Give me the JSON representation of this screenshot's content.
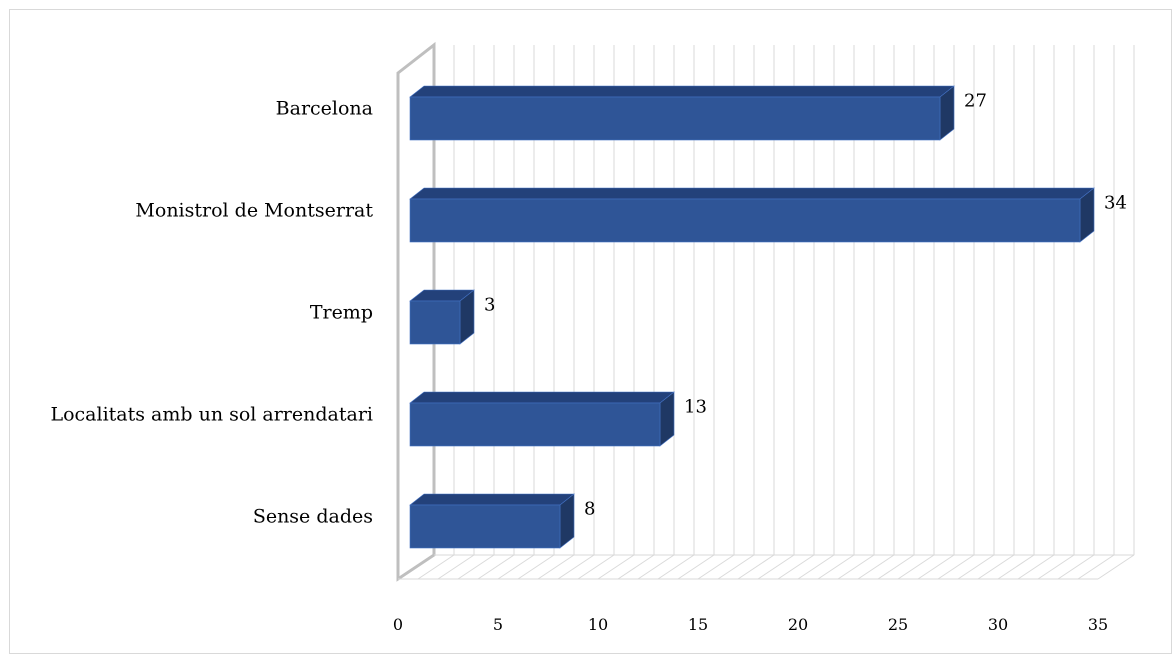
{
  "chart_data": {
    "type": "bar",
    "orientation": "horizontal",
    "style": "3d",
    "categories": [
      "Barcelona",
      "Monistrol de Montserrat",
      "Tremp",
      "Localitats amb un sol arrendatari",
      "Sense dades"
    ],
    "values": [
      27,
      34,
      3,
      13,
      8
    ],
    "data_labels": [
      "27",
      "34",
      "3",
      "13",
      "8"
    ],
    "x_ticks": [
      "0",
      "5",
      "10",
      "15",
      "20",
      "25",
      "30",
      "35"
    ],
    "xlim": [
      0,
      35
    ],
    "title": "",
    "xlabel": "",
    "ylabel": "",
    "grid": true,
    "legend": "none",
    "colors": {
      "bar_front": "#2F5597",
      "bar_top": "#23417A",
      "bar_side": "#1F3864",
      "grid": "#d9d9d9",
      "axis_wall": "#bfbfbf"
    }
  }
}
